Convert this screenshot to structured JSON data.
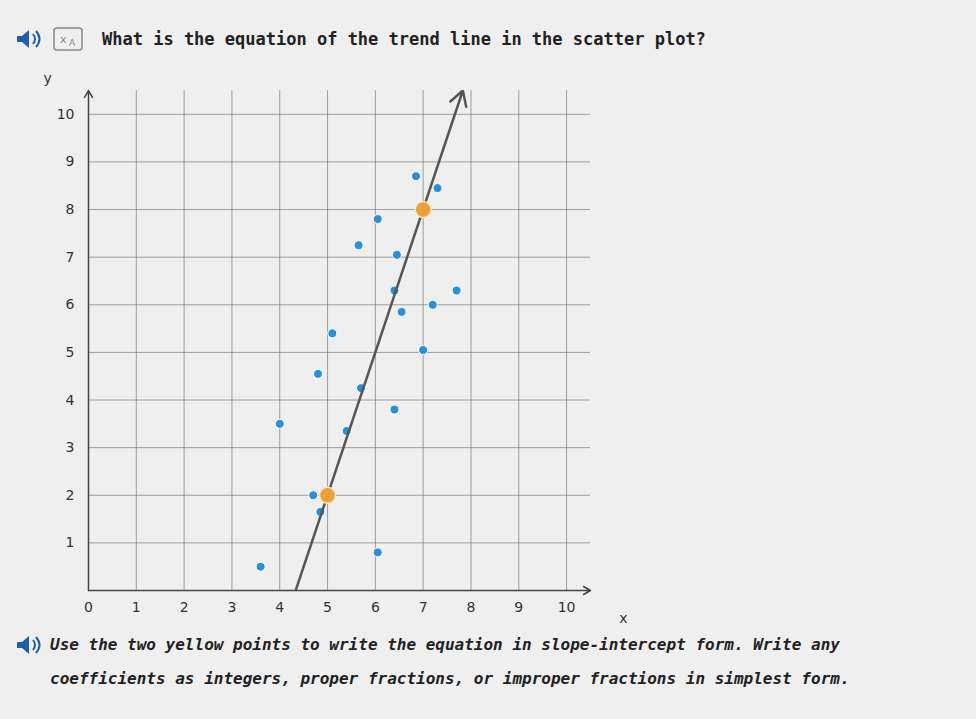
{
  "question": "What is the equation of the trend line in the scatter plot?",
  "instruction": "Use the two yellow points to write the equation in slope-intercept form. Write any coefficients as integers, proper fractions, or improper fractions in simplest form.",
  "chart_data": {
    "type": "scatter",
    "x_label": "x",
    "y_label": "y",
    "xlim": [
      0,
      10.5
    ],
    "ylim": [
      0,
      10.5
    ],
    "xticks": [
      0,
      1,
      2,
      3,
      4,
      5,
      6,
      7,
      8,
      9,
      10
    ],
    "yticks": [
      1,
      2,
      3,
      4,
      5,
      6,
      7,
      8,
      9,
      10
    ],
    "grid": true,
    "color": "#2b8fd6",
    "x": [
      3.6,
      4.0,
      4.7,
      4.85,
      4.8,
      5.1,
      5.4,
      5.7,
      5.65,
      6.05,
      6.05,
      6.4,
      6.45,
      6.4,
      6.55,
      7.0,
      6.85,
      7.3,
      7.2,
      7.7
    ],
    "y": [
      0.5,
      3.5,
      2.0,
      1.65,
      4.55,
      5.4,
      3.35,
      4.25,
      7.25,
      7.8,
      0.8,
      3.8,
      7.05,
      6.3,
      5.85,
      5.05,
      8.7,
      8.45,
      6.0,
      6.3
    ],
    "highlight_points": {
      "x": [
        5,
        7
      ],
      "y": [
        2,
        8
      ],
      "color": "#e9a23b"
    },
    "trend_line": {
      "x": [
        4.25,
        7.83
      ],
      "y": [
        -0.25,
        10.5
      ],
      "color": "#555555"
    }
  }
}
